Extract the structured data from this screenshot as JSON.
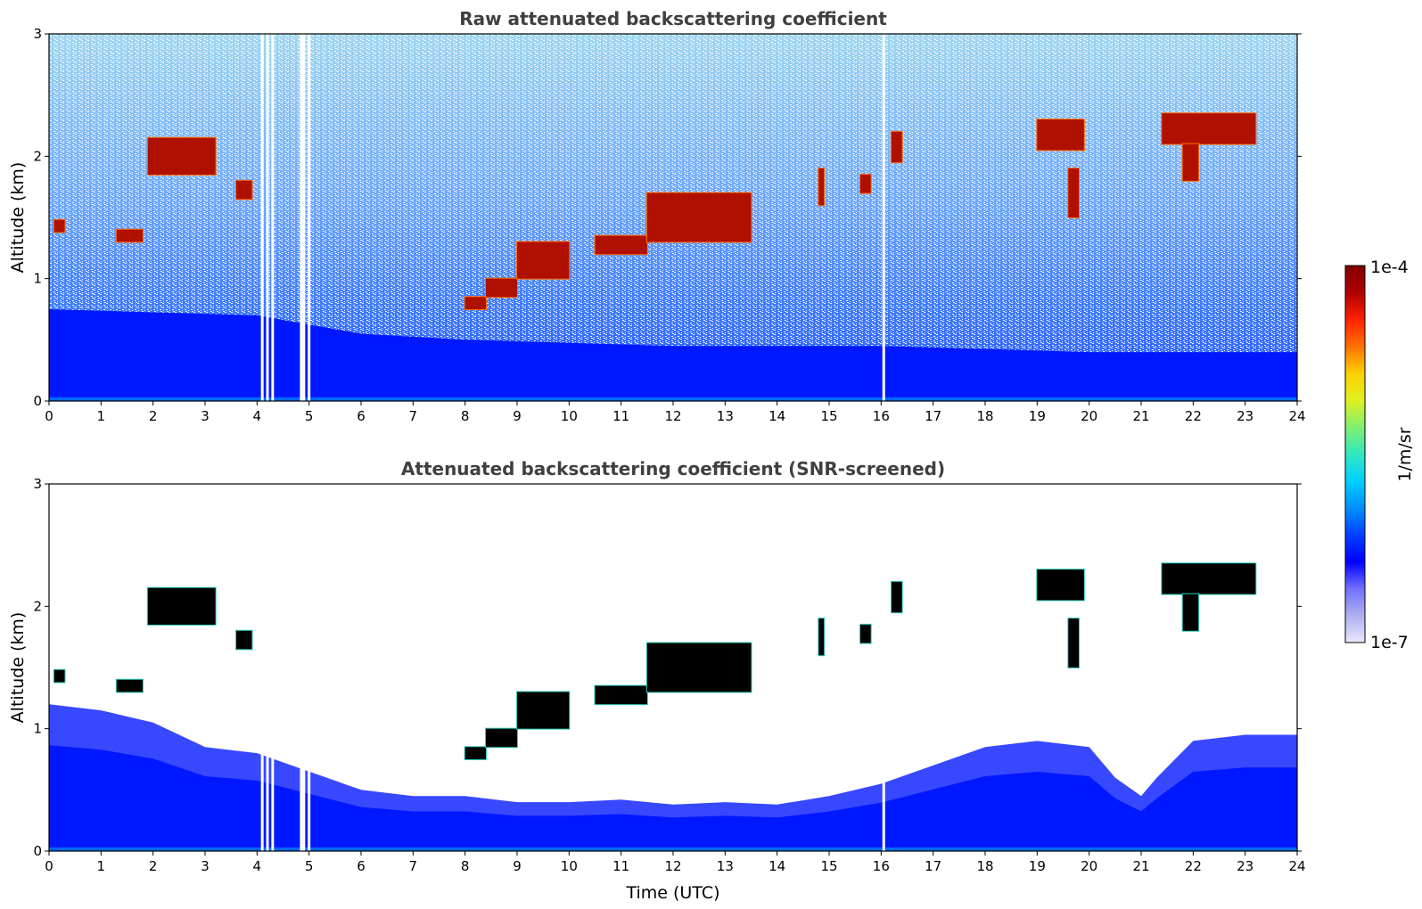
{
  "chart_data": [
    {
      "type": "heatmap",
      "title": "Raw attenuated backscattering coefficient",
      "xlabel": "",
      "ylabel": "Altitude (km)",
      "xlim": [
        0,
        24
      ],
      "ylim": [
        0,
        3
      ],
      "xticks": [
        0,
        1,
        2,
        3,
        4,
        5,
        6,
        7,
        8,
        9,
        10,
        11,
        12,
        13,
        14,
        15,
        16,
        17,
        18,
        19,
        20,
        21,
        22,
        23,
        24
      ],
      "yticks": [
        0,
        1,
        2,
        3
      ],
      "screened": false,
      "boundary_layer_top_km": [
        [
          0,
          0.75
        ],
        [
          4,
          0.7
        ],
        [
          6,
          0.55
        ],
        [
          8,
          0.5
        ],
        [
          12,
          0.45
        ],
        [
          16,
          0.45
        ],
        [
          20,
          0.4
        ],
        [
          24,
          0.4
        ]
      ],
      "cloud_layers": [
        {
          "t0": 0.1,
          "t1": 0.3,
          "base_km": 1.38,
          "top_km": 1.48
        },
        {
          "t0": 1.3,
          "t1": 1.8,
          "base_km": 1.3,
          "top_km": 1.4
        },
        {
          "t0": 1.9,
          "t1": 3.2,
          "base_km": 1.85,
          "top_km": 2.15
        },
        {
          "t0": 3.6,
          "t1": 3.9,
          "base_km": 1.65,
          "top_km": 1.8
        },
        {
          "t0": 8.0,
          "t1": 8.4,
          "base_km": 0.75,
          "top_km": 0.85
        },
        {
          "t0": 8.4,
          "t1": 9.0,
          "base_km": 0.85,
          "top_km": 1.0
        },
        {
          "t0": 9.0,
          "t1": 10.0,
          "base_km": 1.0,
          "top_km": 1.3
        },
        {
          "t0": 10.5,
          "t1": 11.5,
          "base_km": 1.2,
          "top_km": 1.35
        },
        {
          "t0": 11.5,
          "t1": 13.5,
          "base_km": 1.3,
          "top_km": 1.7
        },
        {
          "t0": 14.8,
          "t1": 14.9,
          "base_km": 1.6,
          "top_km": 1.9
        },
        {
          "t0": 15.6,
          "t1": 15.8,
          "base_km": 1.7,
          "top_km": 1.85
        },
        {
          "t0": 16.2,
          "t1": 16.4,
          "base_km": 1.95,
          "top_km": 2.2
        },
        {
          "t0": 19.0,
          "t1": 19.9,
          "base_km": 2.05,
          "top_km": 2.3
        },
        {
          "t0": 19.6,
          "t1": 19.8,
          "base_km": 1.5,
          "top_km": 1.9
        },
        {
          "t0": 21.4,
          "t1": 23.2,
          "base_km": 2.1,
          "top_km": 2.35
        },
        {
          "t0": 21.8,
          "t1": 22.1,
          "base_km": 1.8,
          "top_km": 2.1
        }
      ],
      "data_gaps_utc": [
        4.1,
        4.2,
        4.3,
        4.85,
        4.9,
        5.0,
        16.05
      ]
    },
    {
      "type": "heatmap",
      "title": "Attenuated backscattering coefficient (SNR-screened)",
      "xlabel": "Time (UTC)",
      "ylabel": "Altitude (km)",
      "xlim": [
        0,
        24
      ],
      "ylim": [
        0,
        3
      ],
      "xticks": [
        0,
        1,
        2,
        3,
        4,
        5,
        6,
        7,
        8,
        9,
        10,
        11,
        12,
        13,
        14,
        15,
        16,
        17,
        18,
        19,
        20,
        21,
        22,
        23,
        24
      ],
      "yticks": [
        0,
        1,
        2,
        3
      ],
      "screened": true,
      "boundary_layer_top_km": [
        [
          0,
          1.2
        ],
        [
          1,
          1.15
        ],
        [
          2,
          1.05
        ],
        [
          3,
          0.85
        ],
        [
          4,
          0.8
        ],
        [
          5,
          0.65
        ],
        [
          6,
          0.5
        ],
        [
          7,
          0.45
        ],
        [
          8,
          0.45
        ],
        [
          9,
          0.4
        ],
        [
          10,
          0.4
        ],
        [
          11,
          0.42
        ],
        [
          12,
          0.38
        ],
        [
          13,
          0.4
        ],
        [
          14,
          0.38
        ],
        [
          15,
          0.45
        ],
        [
          16,
          0.55
        ],
        [
          17,
          0.7
        ],
        [
          18,
          0.85
        ],
        [
          19,
          0.9
        ],
        [
          20,
          0.85
        ],
        [
          20.5,
          0.6
        ],
        [
          21,
          0.45
        ],
        [
          21.3,
          0.6
        ],
        [
          22,
          0.9
        ],
        [
          23,
          0.95
        ],
        [
          24,
          0.95
        ]
      ],
      "cloud_layers": [
        {
          "t0": 0.1,
          "t1": 0.3,
          "base_km": 1.38,
          "top_km": 1.48
        },
        {
          "t0": 1.3,
          "t1": 1.8,
          "base_km": 1.3,
          "top_km": 1.4
        },
        {
          "t0": 1.9,
          "t1": 3.2,
          "base_km": 1.85,
          "top_km": 2.15
        },
        {
          "t0": 3.6,
          "t1": 3.9,
          "base_km": 1.65,
          "top_km": 1.8
        },
        {
          "t0": 8.0,
          "t1": 8.4,
          "base_km": 0.75,
          "top_km": 0.85
        },
        {
          "t0": 8.4,
          "t1": 9.0,
          "base_km": 0.85,
          "top_km": 1.0
        },
        {
          "t0": 9.0,
          "t1": 10.0,
          "base_km": 1.0,
          "top_km": 1.3
        },
        {
          "t0": 10.5,
          "t1": 11.5,
          "base_km": 1.2,
          "top_km": 1.35
        },
        {
          "t0": 11.5,
          "t1": 13.5,
          "base_km": 1.3,
          "top_km": 1.7
        },
        {
          "t0": 14.8,
          "t1": 14.9,
          "base_km": 1.6,
          "top_km": 1.9
        },
        {
          "t0": 15.6,
          "t1": 15.8,
          "base_km": 1.7,
          "top_km": 1.85
        },
        {
          "t0": 16.2,
          "t1": 16.4,
          "base_km": 1.95,
          "top_km": 2.2
        },
        {
          "t0": 19.0,
          "t1": 19.9,
          "base_km": 2.05,
          "top_km": 2.3
        },
        {
          "t0": 19.6,
          "t1": 19.8,
          "base_km": 1.5,
          "top_km": 1.9
        },
        {
          "t0": 21.4,
          "t1": 23.2,
          "base_km": 2.1,
          "top_km": 2.35
        },
        {
          "t0": 21.8,
          "t1": 22.1,
          "base_km": 1.8,
          "top_km": 2.1
        }
      ],
      "data_gaps_utc": [
        4.1,
        4.2,
        4.3,
        4.85,
        4.9,
        5.0,
        16.05
      ]
    }
  ],
  "colorbar": {
    "label": "1/m/sr",
    "max_label": "1e-4",
    "min_label": "1e-7",
    "scale": "log",
    "colors": [
      "#e8e8fa",
      "#b0b0f0",
      "#7070ff",
      "#0000ff",
      "#0040ff",
      "#0090ff",
      "#00d0ff",
      "#30e8c0",
      "#80f070",
      "#e0f020",
      "#ffd000",
      "#ff7000",
      "#ff2000",
      "#b00000",
      "#800000"
    ]
  },
  "colors": {
    "cloud_core": "#b01000",
    "cloud_edge": "#ff7000",
    "cloud_screened": "#000000",
    "boundary_layer": "#0018ff",
    "background_noise": "#2060ff"
  }
}
